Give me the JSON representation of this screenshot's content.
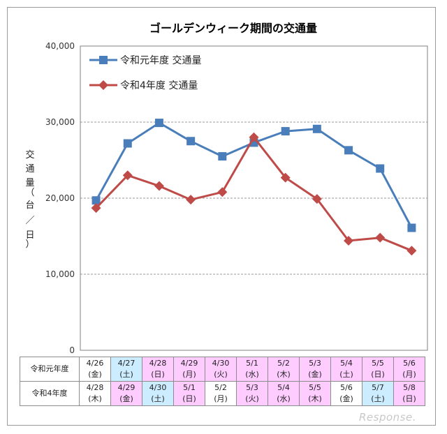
{
  "chart_data": {
    "type": "line",
    "title": "ゴールデンウィーク期間の交通量",
    "ylabel": "交通量（台／日）",
    "ylabel_chars": [
      "交",
      "通",
      "量",
      "（",
      "台",
      "／",
      "日",
      "）"
    ],
    "ylim": [
      0,
      40000
    ],
    "yticks": [
      0,
      10000,
      20000,
      30000,
      40000
    ],
    "ytick_labels": [
      "0",
      "10,000",
      "20,000",
      "30,000",
      "40,000"
    ],
    "grid": "horizontal-dashed",
    "legend_position": "top-left",
    "x": [
      1,
      2,
      3,
      4,
      5,
      6,
      7,
      8,
      9,
      10,
      11
    ],
    "series": [
      {
        "name": "令和元年度 交通量",
        "color": "#4a7ebb",
        "marker": "square",
        "values": [
          19700,
          27200,
          29900,
          27500,
          25500,
          27300,
          28800,
          29100,
          26300,
          23900,
          16100
        ]
      },
      {
        "name": "令和4年度 交通量",
        "color": "#be4b48",
        "marker": "diamond",
        "values": [
          18700,
          23000,
          21600,
          19800,
          20800,
          28000,
          22700,
          19900,
          14400,
          14800,
          13100
        ]
      }
    ]
  },
  "table": {
    "rows": [
      {
        "label": "令和元年度",
        "cells": [
          {
            "d": "4/26",
            "w": "(金)",
            "color": "#ffffff"
          },
          {
            "d": "4/27",
            "w": "(土)",
            "color": "#ccecff"
          },
          {
            "d": "4/28",
            "w": "(日)",
            "color": "#ffccff"
          },
          {
            "d": "4/29",
            "w": "(月)",
            "color": "#ffccff"
          },
          {
            "d": "4/30",
            "w": "(火)",
            "color": "#ffccff"
          },
          {
            "d": "5/1",
            "w": "(水)",
            "color": "#ffccff"
          },
          {
            "d": "5/2",
            "w": "(木)",
            "color": "#ffccff"
          },
          {
            "d": "5/3",
            "w": "(金)",
            "color": "#ffccff"
          },
          {
            "d": "5/4",
            "w": "(土)",
            "color": "#ffccff"
          },
          {
            "d": "5/5",
            "w": "(日)",
            "color": "#ffccff"
          },
          {
            "d": "5/6",
            "w": "(月)",
            "color": "#ffccff"
          }
        ]
      },
      {
        "label": "令和4年度",
        "cells": [
          {
            "d": "4/28",
            "w": "(木)",
            "color": "#ffffff"
          },
          {
            "d": "4/29",
            "w": "(金)",
            "color": "#ffccff"
          },
          {
            "d": "4/30",
            "w": "(土)",
            "color": "#ccecff"
          },
          {
            "d": "5/1",
            "w": "(日)",
            "color": "#ffccff"
          },
          {
            "d": "5/2",
            "w": "(月)",
            "color": "#ffffff"
          },
          {
            "d": "5/3",
            "w": "(火)",
            "color": "#ffccff"
          },
          {
            "d": "5/4",
            "w": "(水)",
            "color": "#ffccff"
          },
          {
            "d": "5/5",
            "w": "(木)",
            "color": "#ffccff"
          },
          {
            "d": "5/6",
            "w": "(金)",
            "color": "#ffffff"
          },
          {
            "d": "5/7",
            "w": "(土)",
            "color": "#ccecff"
          },
          {
            "d": "5/8",
            "w": "(日)",
            "color": "#ffccff"
          }
        ]
      }
    ]
  },
  "watermark": "Response."
}
